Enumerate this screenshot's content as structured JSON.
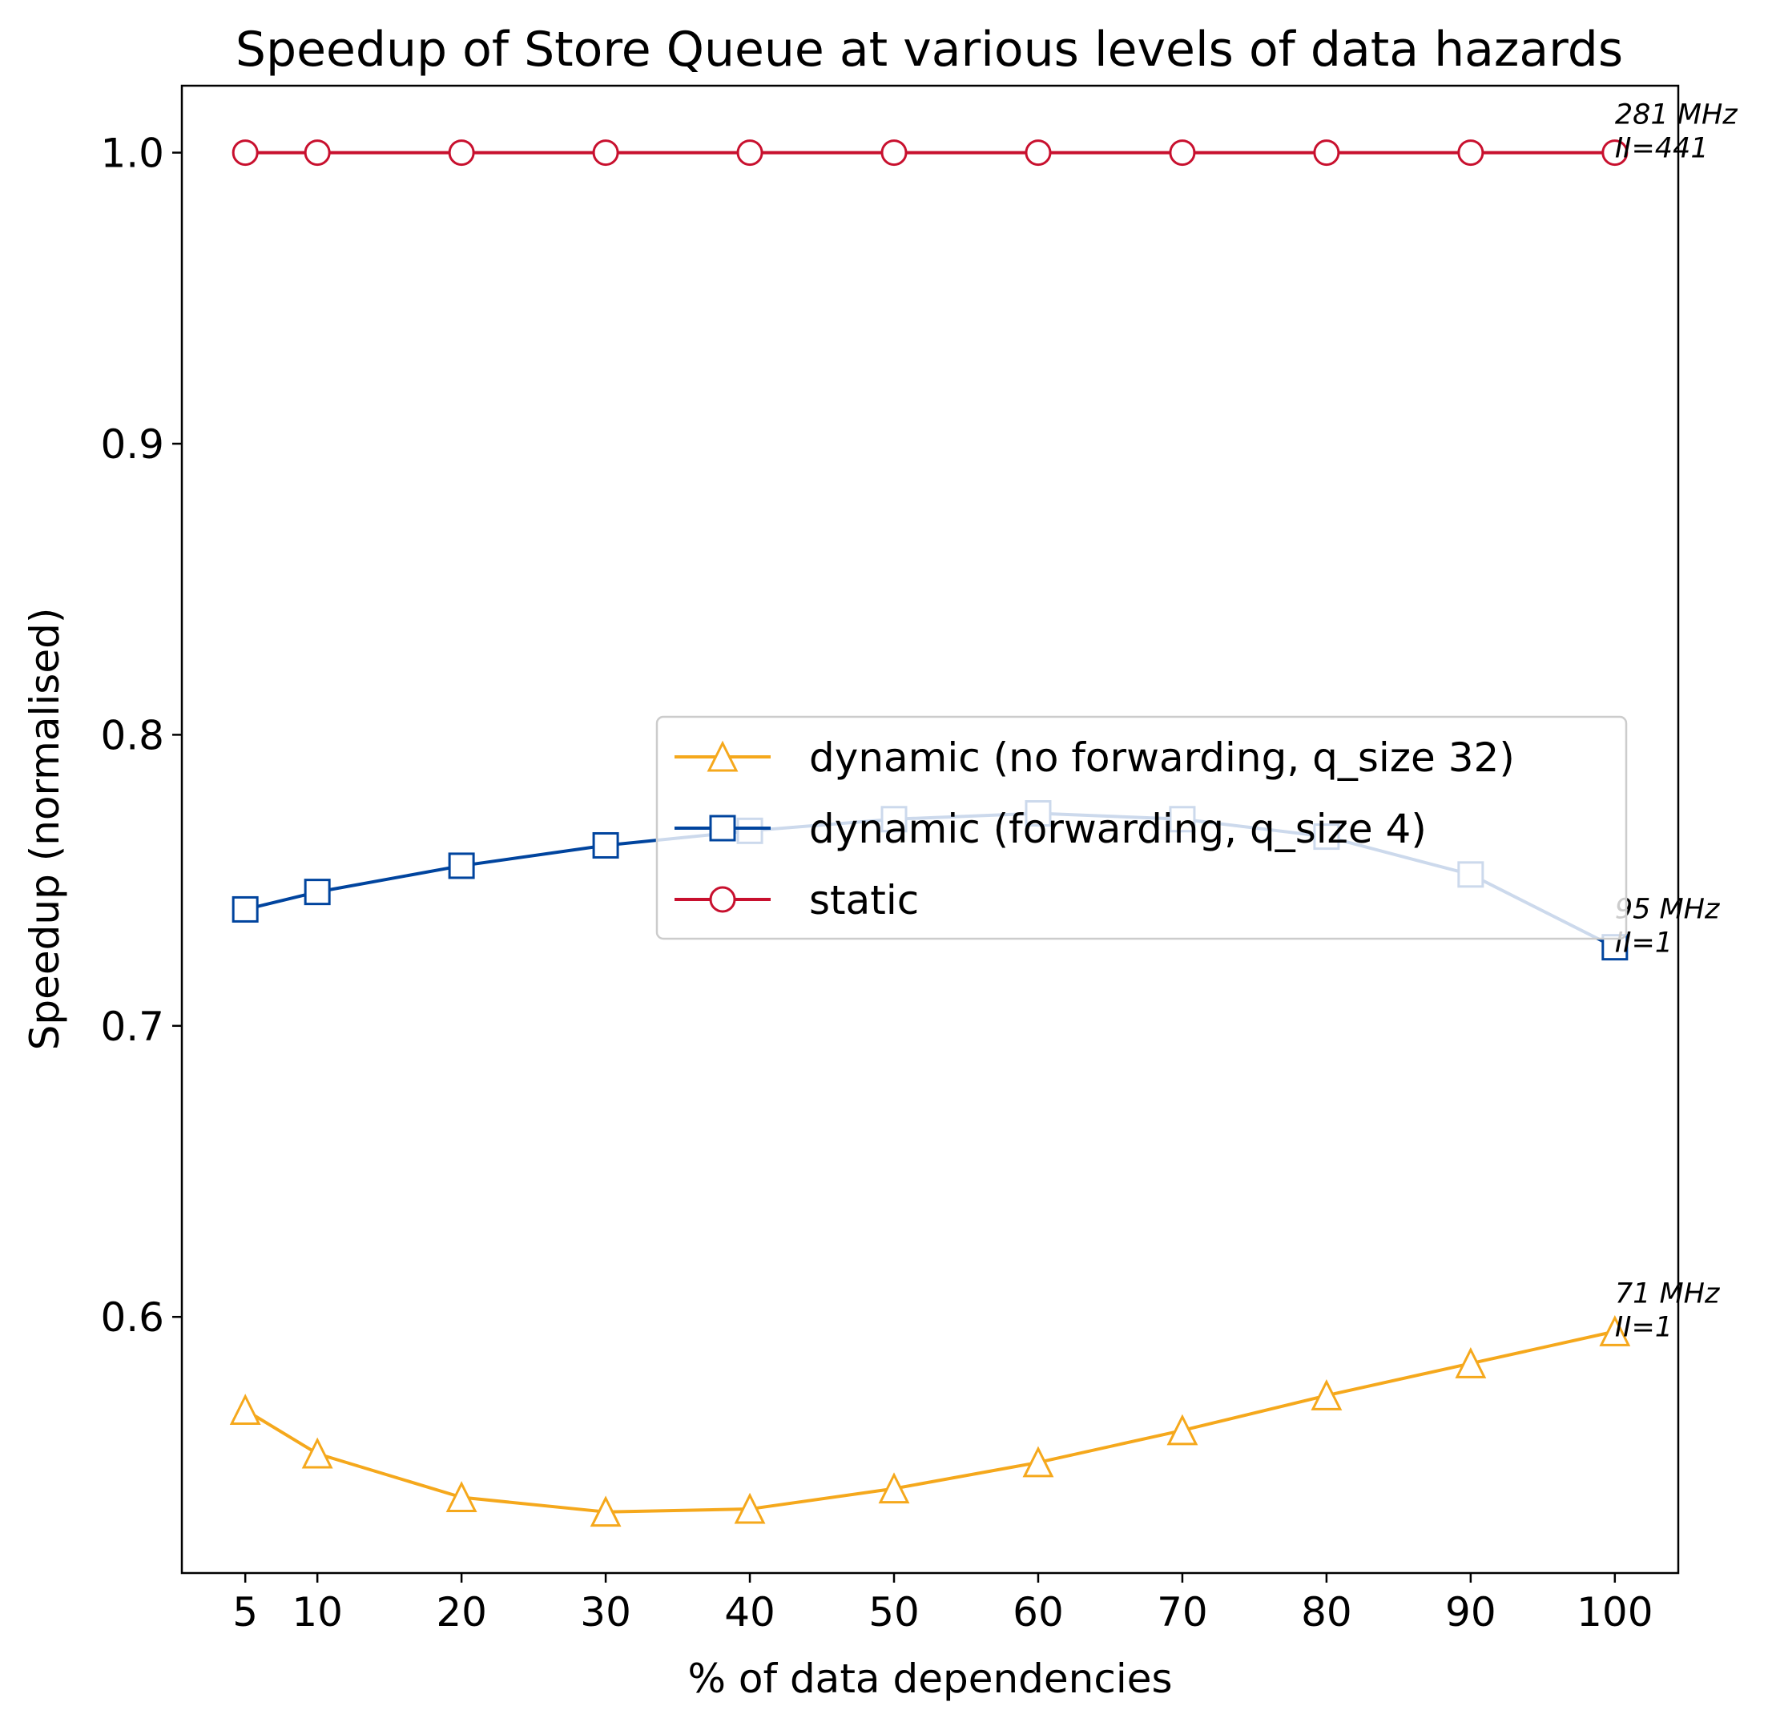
{
  "chart_data": {
    "type": "line",
    "title": "Speedup of Store Queue at various levels of data hazards",
    "xlabel": "% of data dependencies",
    "ylabel": "Speedup (normalised)",
    "xlim": [
      0.6,
      104.4
    ],
    "ylim": [
      0.512,
      1.023
    ],
    "xticks": [
      5,
      10,
      20,
      30,
      40,
      50,
      60,
      70,
      80,
      90,
      100
    ],
    "yticks": [
      0.6,
      0.7,
      0.8,
      0.9,
      1.0
    ],
    "ytick_labels": [
      "0.6",
      "0.7",
      "0.8",
      "0.9",
      "1.0"
    ],
    "x": [
      5,
      10,
      20,
      30,
      40,
      50,
      60,
      70,
      80,
      90,
      100
    ],
    "grid": false,
    "legend_position": "center-right",
    "series": [
      {
        "name": "dynamic (no forwarding, q_size 32)",
        "color": "#F5A81C",
        "marker": "triangle",
        "values": [
          0.568,
          0.553,
          0.538,
          0.533,
          0.534,
          0.541,
          0.55,
          0.561,
          0.573,
          0.584,
          0.595
        ]
      },
      {
        "name": "dynamic (forwarding, q_size 4)",
        "color": "#00449E",
        "marker": "square",
        "values": [
          0.74,
          0.746,
          0.755,
          0.762,
          0.767,
          0.771,
          0.773,
          0.771,
          0.765,
          0.752,
          0.727
        ]
      },
      {
        "name": "static",
        "color": "#C8102E",
        "marker": "circle",
        "values": [
          1.0,
          1.0,
          1.0,
          1.0,
          1.0,
          1.0,
          1.0,
          1.0,
          1.0,
          1.0,
          1.0
        ]
      }
    ],
    "annotations": [
      {
        "lines": [
          "281 MHz",
          "II=441"
        ],
        "x": 100,
        "y": 1.0
      },
      {
        "lines": [
          "95 MHz",
          "II=1"
        ],
        "x": 100,
        "y": 0.727
      },
      {
        "lines": [
          "71 MHz",
          "II=1"
        ],
        "x": 100,
        "y": 0.595
      }
    ]
  }
}
